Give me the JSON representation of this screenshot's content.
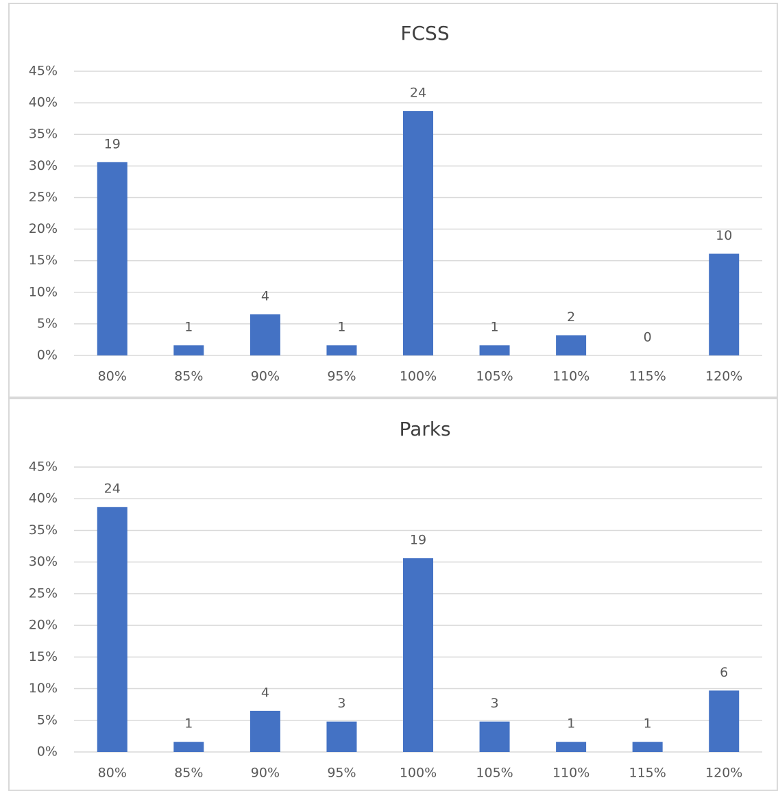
{
  "chart_data": [
    {
      "type": "bar",
      "title": "FCSS",
      "categories": [
        "80%",
        "85%",
        "90%",
        "95%",
        "100%",
        "105%",
        "110%",
        "115%",
        "120%"
      ],
      "values": [
        30.6,
        1.6,
        6.5,
        1.6,
        38.7,
        1.6,
        3.2,
        0,
        16.1
      ],
      "counts": [
        19,
        1,
        4,
        1,
        24,
        1,
        2,
        0,
        10
      ],
      "color": "#4472c4",
      "ylim": [
        0,
        45
      ],
      "yticks": [
        {
          "value": 0,
          "label": "0%"
        },
        {
          "value": 5,
          "label": "5%"
        },
        {
          "value": 10,
          "label": "10%"
        },
        {
          "value": 15,
          "label": "15%"
        },
        {
          "value": 20,
          "label": "20%"
        },
        {
          "value": 25,
          "label": "25%"
        },
        {
          "value": 30,
          "label": "30%"
        },
        {
          "value": 35,
          "label": "35%"
        },
        {
          "value": 40,
          "label": "40%"
        },
        {
          "value": 45,
          "label": "45%"
        }
      ],
      "grid": true
    },
    {
      "type": "bar",
      "title": "Parks",
      "categories": [
        "80%",
        "85%",
        "90%",
        "95%",
        "100%",
        "105%",
        "110%",
        "115%",
        "120%"
      ],
      "values": [
        38.7,
        1.6,
        6.5,
        4.8,
        30.6,
        4.8,
        1.6,
        1.6,
        9.7
      ],
      "counts": [
        24,
        1,
        4,
        3,
        19,
        3,
        1,
        1,
        6
      ],
      "color": "#4472c4",
      "ylim": [
        0,
        45
      ],
      "yticks": [
        {
          "value": 0,
          "label": "0%"
        },
        {
          "value": 5,
          "label": "5%"
        },
        {
          "value": 10,
          "label": "10%"
        },
        {
          "value": 15,
          "label": "15%"
        },
        {
          "value": 20,
          "label": "20%"
        },
        {
          "value": 25,
          "label": "25%"
        },
        {
          "value": 30,
          "label": "30%"
        },
        {
          "value": 35,
          "label": "35%"
        },
        {
          "value": 40,
          "label": "40%"
        },
        {
          "value": 45,
          "label": "45%"
        }
      ],
      "grid": true
    }
  ]
}
